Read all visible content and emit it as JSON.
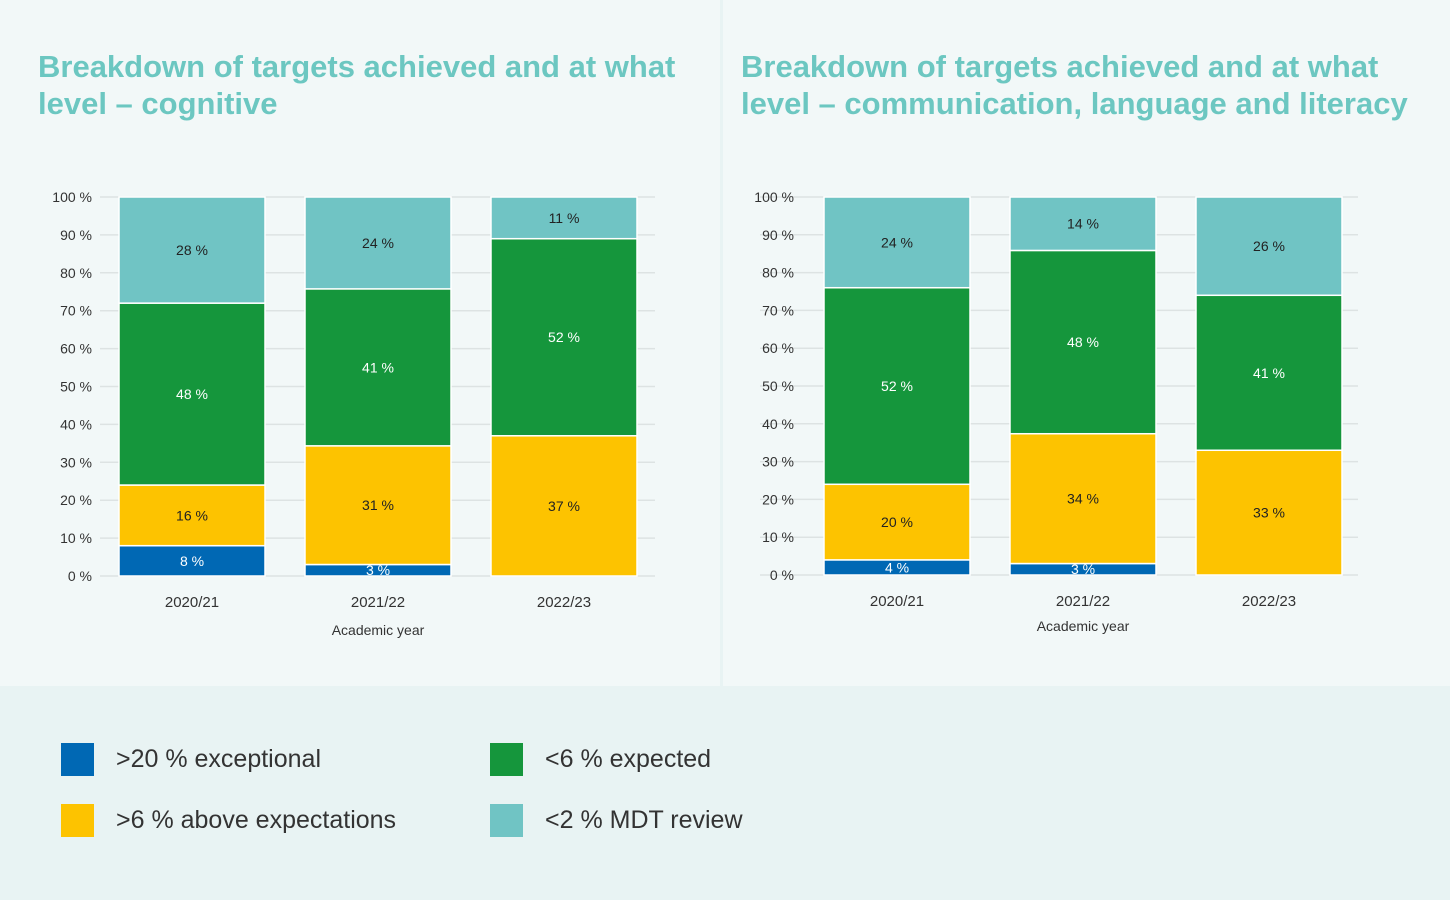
{
  "colors": {
    "exceptional": "#0068b4",
    "above": "#fdc300",
    "expected": "#15963c",
    "mdt": "#70c4c4",
    "title": "#6cc7c1"
  },
  "legend": [
    {
      "label": ">20 % exceptional",
      "color": "#0068b4"
    },
    {
      "label": "<6 % expected",
      "color": "#15963c"
    },
    {
      "label": ">6 % above expectations",
      "color": "#fdc300"
    },
    {
      "label": "<2 % MDT review",
      "color": "#70c4c4"
    }
  ],
  "chart_data": [
    {
      "type": "bar",
      "stacked": true,
      "title": "Breakdown of targets achieved and at what level – cognitive",
      "xlabel": "Academic year",
      "ylabel": "",
      "ylim": [
        0,
        100
      ],
      "grid": true,
      "yticks": [
        "0 %",
        "10 %",
        "20 %",
        "30 %",
        "40 %",
        "50 %",
        "60 %",
        "70 %",
        "80 %",
        "90 %",
        "100 %"
      ],
      "categories": [
        "2020/21",
        "2021/22",
        "2022/23"
      ],
      "series": [
        {
          "name": ">20 % exceptional",
          "color": "#0068b4",
          "values": [
            8,
            3,
            0
          ],
          "labels": [
            "8 %",
            "3 %",
            "0 %"
          ]
        },
        {
          "name": ">6 % above expectations",
          "color": "#fdc300",
          "values": [
            16,
            31,
            37
          ],
          "labels": [
            "16 %",
            "31 %",
            "37 %"
          ]
        },
        {
          "name": "<6 % expected",
          "color": "#15963c",
          "values": [
            48,
            41,
            52
          ],
          "labels": [
            "48 %",
            "41 %",
            "52 %"
          ]
        },
        {
          "name": "<2 % MDT review",
          "color": "#70c4c4",
          "values": [
            28,
            24,
            11
          ],
          "labels": [
            "28 %",
            "24 %",
            "11 %"
          ]
        }
      ]
    },
    {
      "type": "bar",
      "stacked": true,
      "title": "Breakdown of targets achieved and at what level – communication, language and literacy",
      "xlabel": "Academic year",
      "ylabel": "",
      "ylim": [
        0,
        100
      ],
      "grid": true,
      "yticks": [
        "0 %",
        "10 %",
        "20 %",
        "30 %",
        "40 %",
        "50 %",
        "60 %",
        "70 %",
        "80 %",
        "90 %",
        "100 %"
      ],
      "categories": [
        "2020/21",
        "2021/22",
        "2022/23"
      ],
      "series": [
        {
          "name": ">20 % exceptional",
          "color": "#0068b4",
          "values": [
            4,
            3,
            0
          ],
          "labels": [
            "4 %",
            "3 %",
            "0 %"
          ]
        },
        {
          "name": ">6 % above expectations",
          "color": "#fdc300",
          "values": [
            20,
            34,
            33
          ],
          "labels": [
            "20 %",
            "34 %",
            "33 %"
          ]
        },
        {
          "name": "<6 % expected",
          "color": "#15963c",
          "values": [
            52,
            48,
            41
          ],
          "labels": [
            "52 %",
            "48 %",
            "41 %"
          ]
        },
        {
          "name": "<2 % MDT review",
          "color": "#70c4c4",
          "values": [
            24,
            14,
            26
          ],
          "labels": [
            "24 %",
            "14 %",
            "26 %"
          ]
        }
      ]
    }
  ]
}
